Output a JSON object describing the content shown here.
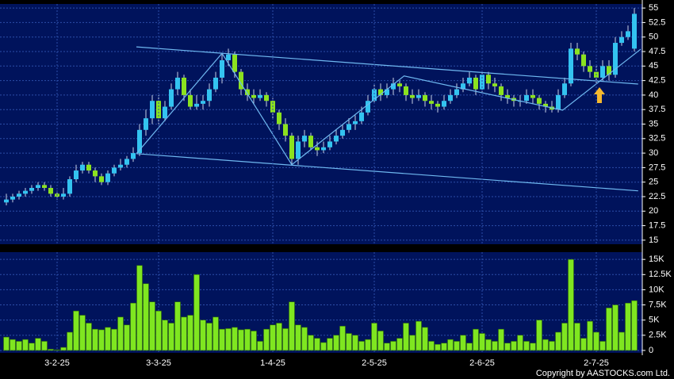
{
  "chart_data": [
    {
      "type": "candlestick",
      "up_color": "#33c3f0",
      "down_color": "#8be21f",
      "open": [
        21.5,
        22,
        22.5,
        23,
        23.5,
        24,
        24.5,
        24,
        23,
        22.5,
        23,
        25.5,
        27,
        28,
        27,
        26,
        25,
        26.5,
        27.5,
        28,
        29,
        30,
        34,
        36,
        39,
        36,
        38,
        41,
        43,
        40,
        38,
        38.5,
        39,
        41,
        43,
        46,
        47,
        44,
        41,
        40,
        39.5,
        40,
        39,
        37,
        35,
        33,
        29,
        32,
        33,
        31,
        30.5,
        31,
        32,
        33,
        34,
        35,
        35.5,
        37,
        39,
        41,
        40,
        41,
        42,
        41.5,
        40,
        39.5,
        40,
        39,
        38.5,
        38,
        39,
        40,
        41,
        42,
        43,
        41,
        43.5,
        42,
        41.5,
        40,
        39.5,
        39,
        39,
        40,
        39.5,
        38.5,
        38,
        37.5,
        40,
        42,
        48,
        47,
        45,
        44,
        43,
        45,
        43.5,
        49,
        50,
        48
      ],
      "high": [
        23,
        23,
        23.5,
        24,
        24.5,
        25,
        25,
        24.5,
        23.5,
        24,
        26,
        28,
        28.5,
        28.5,
        27.5,
        26.5,
        27,
        28,
        29,
        29.5,
        31,
        35,
        37.5,
        40,
        40,
        39,
        42,
        44,
        43.5,
        41,
        40,
        40,
        42,
        44,
        47,
        48,
        47.5,
        44.5,
        42,
        41,
        41,
        40.5,
        39.5,
        37.5,
        36,
        33.5,
        33,
        34,
        33.5,
        32,
        32,
        33,
        34,
        35,
        36,
        36.5,
        38,
        40,
        42,
        42,
        42,
        43,
        42.5,
        42,
        41,
        41,
        40.5,
        40,
        39,
        40,
        41,
        42,
        43,
        44,
        43.5,
        44,
        44,
        43,
        42,
        41,
        40,
        40,
        41,
        41,
        40,
        39,
        39,
        41,
        43,
        49,
        49,
        47.5,
        46,
        45,
        46,
        46,
        50,
        51,
        52,
        55
      ],
      "low": [
        21,
        21.5,
        22,
        22.5,
        23,
        23.5,
        23.5,
        22.5,
        22,
        22,
        22.5,
        25,
        26.5,
        26.5,
        25,
        24.5,
        24.5,
        26,
        27,
        27.5,
        28.5,
        29.5,
        33,
        35,
        35,
        35.5,
        37.5,
        40,
        39,
        37.5,
        37.5,
        37.5,
        38,
        40.5,
        42,
        45,
        43,
        40,
        39,
        38.5,
        39,
        38,
        36,
        34,
        32,
        28,
        28,
        31,
        30.5,
        29.5,
        30,
        30.5,
        31.5,
        32.5,
        33.5,
        34,
        35,
        36.5,
        38.5,
        39,
        39.5,
        40,
        40.5,
        39,
        38.5,
        39,
        38,
        37.5,
        37,
        37.5,
        38.5,
        39.5,
        40.5,
        41.5,
        40,
        40.5,
        41,
        40.5,
        39,
        38.5,
        38,
        38,
        38.5,
        38.5,
        37.5,
        37,
        37,
        37,
        39.5,
        41.5,
        46,
        44,
        43,
        42,
        42.5,
        42.5,
        43,
        48.5,
        49.5,
        47.5
      ],
      "close": [
        22,
        22.5,
        23,
        23.5,
        24,
        24.5,
        24,
        23,
        22.5,
        23,
        25.5,
        27,
        28,
        27,
        26,
        25,
        26.5,
        27.5,
        28,
        29,
        30,
        34,
        36,
        39,
        36,
        38,
        41,
        43,
        40,
        38,
        38.5,
        39,
        41,
        43,
        46,
        47,
        44,
        41,
        40,
        39.5,
        40,
        39,
        37,
        35,
        33,
        29,
        32,
        33,
        31,
        30.5,
        31,
        32,
        33,
        34,
        35,
        35.5,
        37,
        39,
        41,
        40,
        41,
        42,
        41.5,
        40,
        39.5,
        40,
        39,
        38.5,
        38,
        39,
        40,
        41,
        42,
        43,
        41,
        43.5,
        42,
        41.5,
        40,
        39.5,
        39,
        39,
        40,
        39.5,
        38.5,
        38,
        37.5,
        40,
        42,
        48,
        47,
        45,
        44,
        43,
        45,
        43.5,
        49,
        50,
        51,
        54
      ],
      "trend_lines": [
        {
          "color": "#6fb8f0",
          "points": [
            [
              20.5,
              48.3
            ],
            [
              99.6,
              41.9
            ]
          ]
        },
        {
          "color": "#6fb8f0",
          "points": [
            [
              20.5,
              29.9
            ],
            [
              99.6,
              23.5
            ]
          ]
        },
        {
          "color": "#6fb8f0",
          "points": [
            [
              20.5,
              29.9
            ],
            [
              34,
              47.2
            ],
            [
              45,
              28
            ],
            [
              62.7,
              43.3
            ],
            [
              87.7,
              37.4
            ],
            [
              100,
              47.9
            ]
          ]
        }
      ],
      "ylim": [
        14.3,
        55.7
      ],
      "yticks": [
        15,
        17.5,
        20,
        22.5,
        25,
        27.5,
        30,
        32.5,
        35,
        37.5,
        40,
        42.5,
        45,
        47.5,
        50,
        52.5,
        55
      ],
      "grid": true
    },
    {
      "type": "bar",
      "color": "#7fe620",
      "categories": [
        null,
        null,
        null,
        null,
        null,
        null,
        null,
        null,
        "3-2-25",
        null,
        null,
        null,
        null,
        null,
        null,
        null,
        null,
        null,
        null,
        null,
        null,
        null,
        null,
        null,
        "3-3-25",
        null,
        null,
        null,
        null,
        null,
        null,
        null,
        null,
        null,
        null,
        null,
        null,
        null,
        null,
        null,
        null,
        null,
        "1-4-25",
        null,
        null,
        null,
        null,
        null,
        null,
        null,
        null,
        null,
        null,
        null,
        null,
        null,
        null,
        null,
        "2-5-25",
        null,
        null,
        null,
        null,
        null,
        null,
        null,
        null,
        null,
        null,
        null,
        null,
        null,
        null,
        null,
        null,
        "2-6-25",
        null,
        null,
        null,
        null,
        null,
        null,
        null,
        null,
        null,
        null,
        null,
        null,
        null,
        null,
        null,
        null,
        null,
        "2-7-25",
        null,
        null,
        null,
        null,
        null,
        null
      ],
      "values": [
        2200,
        1800,
        1500,
        1800,
        1200,
        2000,
        1500,
        200,
        100,
        500,
        3000,
        6500,
        5800,
        4500,
        3500,
        3400,
        3800,
        3500,
        5500,
        4200,
        7800,
        14000,
        11000,
        8000,
        6500,
        5000,
        4500,
        8000,
        5500,
        5800,
        12500,
        5000,
        4500,
        5500,
        3500,
        3600,
        3800,
        3400,
        3500,
        3200,
        1500,
        3500,
        4200,
        4500,
        3600,
        8000,
        4200,
        3800,
        2500,
        2000,
        1300,
        2000,
        2500,
        4000,
        2800,
        2500,
        1500,
        1800,
        4500,
        3200,
        1200,
        1500,
        2000,
        4500,
        2500,
        4800,
        3800,
        1500,
        1000,
        1200,
        1800,
        1500,
        2500,
        1200,
        3500,
        2800,
        1800,
        1500,
        3500,
        1200,
        1500,
        2500,
        1500,
        1200,
        5000,
        1800,
        1500,
        3000,
        4500,
        15000,
        4500,
        2000,
        4800,
        3000,
        1500,
        7000,
        7500,
        3000,
        7800,
        8200
      ],
      "ylim": [
        -400,
        16200
      ],
      "yticks": [
        0,
        {
          "value": 2500,
          "label": "2.5K"
        },
        {
          "value": 5000,
          "label": "5K"
        },
        {
          "value": 7500,
          "label": "7.5K"
        },
        {
          "value": 10000,
          "label": "10K"
        },
        {
          "value": 12500,
          "label": "12.5K"
        },
        {
          "value": 15000,
          "label": "15K"
        }
      ],
      "grid": true
    }
  ],
  "copyright": "Copyright by AASTOCKS.com Ltd."
}
